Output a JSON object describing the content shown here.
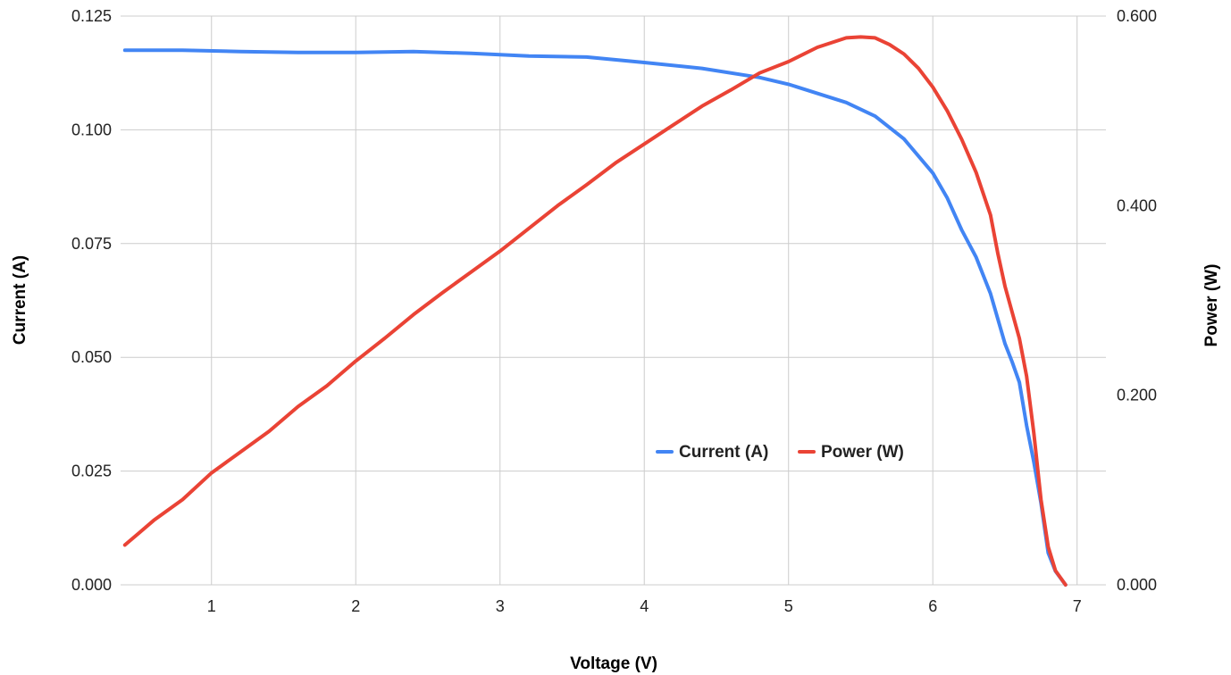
{
  "chart_data": {
    "type": "line",
    "title": "",
    "xlabel": "Voltage (V)",
    "ylabel": "Current (A)",
    "y2label": "Power (W)",
    "xlim": [
      0.37,
      7.2
    ],
    "ylim": [
      0,
      0.125
    ],
    "y2lim": [
      0,
      0.6
    ],
    "xticks": [
      1,
      2,
      3,
      4,
      5,
      6,
      7
    ],
    "xtick_labels": [
      "1",
      "2",
      "3",
      "4",
      "5",
      "6",
      "7"
    ],
    "yticks": [
      0,
      0.025,
      0.05,
      0.075,
      0.1,
      0.125
    ],
    "ytick_labels": [
      "0.000",
      "0.025",
      "0.050",
      "0.075",
      "0.100",
      "0.125"
    ],
    "y2ticks": [
      0,
      0.2,
      0.4,
      0.6
    ],
    "y2tick_labels": [
      "0.000",
      "0.200",
      "0.400",
      "0.600"
    ],
    "grid": true,
    "legend_position": "inside-center-right",
    "series": [
      {
        "name": "Current (A)",
        "axis": "left",
        "color": "#4285f4",
        "x": [
          0.4,
          0.8,
          1.2,
          1.6,
          2.0,
          2.4,
          2.8,
          3.2,
          3.6,
          4.0,
          4.4,
          4.8,
          5.0,
          5.4,
          5.6,
          5.8,
          6.0,
          6.1,
          6.2,
          6.3,
          6.4,
          6.5,
          6.55,
          6.6,
          6.65,
          6.7,
          6.75,
          6.8,
          6.85,
          6.92
        ],
        "values": [
          0.1175,
          0.1175,
          0.1172,
          0.117,
          0.117,
          0.1172,
          0.1168,
          0.1162,
          0.116,
          0.1148,
          0.1135,
          0.1115,
          0.11,
          0.106,
          0.103,
          0.098,
          0.0905,
          0.085,
          0.078,
          0.072,
          0.064,
          0.053,
          0.049,
          0.0445,
          0.035,
          0.027,
          0.018,
          0.007,
          0.003,
          0.0
        ]
      },
      {
        "name": "Power (W)",
        "axis": "right",
        "color": "#ea4335",
        "x": [
          0.4,
          0.5,
          0.6,
          0.8,
          1.0,
          1.2,
          1.4,
          1.6,
          1.8,
          2.0,
          2.2,
          2.4,
          2.6,
          2.8,
          3.0,
          3.2,
          3.4,
          3.6,
          3.8,
          4.0,
          4.2,
          4.4,
          4.6,
          4.8,
          5.0,
          5.2,
          5.4,
          5.5,
          5.6,
          5.7,
          5.8,
          5.9,
          6.0,
          6.1,
          6.2,
          6.3,
          6.4,
          6.45,
          6.5,
          6.6,
          6.65,
          6.7,
          6.75,
          6.8,
          6.85,
          6.92
        ],
        "values": [
          0.042,
          0.055,
          0.068,
          0.09,
          0.118,
          0.14,
          0.162,
          0.188,
          0.21,
          0.236,
          0.26,
          0.285,
          0.308,
          0.33,
          0.352,
          0.376,
          0.4,
          0.422,
          0.445,
          0.465,
          0.485,
          0.505,
          0.522,
          0.54,
          0.552,
          0.567,
          0.577,
          0.578,
          0.577,
          0.57,
          0.56,
          0.545,
          0.525,
          0.5,
          0.47,
          0.435,
          0.39,
          0.35,
          0.315,
          0.26,
          0.22,
          0.16,
          0.09,
          0.04,
          0.015,
          0.0
        ]
      }
    ]
  }
}
